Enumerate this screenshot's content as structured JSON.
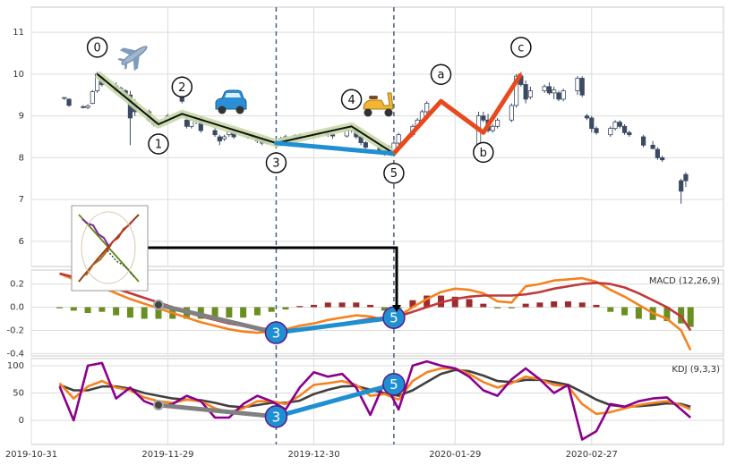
{
  "chart_data": [
    {
      "type": "candlestick",
      "x": [
        "2019-11-07",
        "2019-11-08",
        "2019-11-11",
        "2019-11-12",
        "2019-11-13",
        "2019-11-14",
        "2019-11-15",
        "2019-11-18",
        "2019-11-19",
        "2019-11-20",
        "2019-11-21",
        "2019-11-22",
        "2019-11-25",
        "2019-11-26",
        "2019-11-27",
        "2019-11-29",
        "2019-12-02",
        "2019-12-03",
        "2019-12-04",
        "2019-12-05",
        "2019-12-06",
        "2019-12-09",
        "2019-12-10",
        "2019-12-11",
        "2019-12-12",
        "2019-12-13",
        "2019-12-16",
        "2019-12-17",
        "2019-12-18",
        "2019-12-19",
        "2019-12-20",
        "2019-12-23",
        "2019-12-24",
        "2019-12-26",
        "2019-12-27",
        "2019-12-30",
        "2019-12-31",
        "2020-01-02",
        "2020-01-03",
        "2020-01-06",
        "2020-01-07",
        "2020-01-08",
        "2020-01-09",
        "2020-01-10",
        "2020-01-13",
        "2020-01-14",
        "2020-01-15",
        "2020-01-16",
        "2020-01-17",
        "2020-01-20",
        "2020-01-21",
        "2020-01-22",
        "2020-01-23",
        "2020-02-03",
        "2020-02-04",
        "2020-02-05",
        "2020-02-06",
        "2020-02-07",
        "2020-02-10",
        "2020-02-11",
        "2020-02-12",
        "2020-02-13",
        "2020-02-14",
        "2020-02-17",
        "2020-02-18",
        "2020-02-19",
        "2020-02-20",
        "2020-02-21",
        "2020-02-24",
        "2020-02-25",
        "2020-02-26",
        "2020-02-27",
        "2020-02-28",
        "2020-03-02",
        "2020-03-03",
        "2020-03-04",
        "2020-03-05",
        "2020-03-06",
        "2020-03-09",
        "2020-03-11",
        "2020-03-12",
        "2020-03-13",
        "2020-03-17",
        "2020-03-18"
      ],
      "open": [
        9.42,
        9.4,
        9.22,
        9.2,
        9.3,
        9.6,
        9.95,
        9.72,
        9.58,
        9.6,
        9.5,
        9.3,
        9.1,
        8.88,
        8.8,
        8.9,
        9.9,
        8.9,
        8.75,
        8.9,
        8.95,
        8.65,
        8.5,
        8.45,
        8.55,
        8.6,
        8.5,
        8.55,
        8.48,
        8.4,
        8.35,
        8.42,
        8.46,
        8.5,
        8.53,
        8.5,
        8.56,
        8.58,
        8.55,
        8.52,
        8.66,
        8.72,
        8.5,
        8.36,
        8.25,
        8.15,
        8.12,
        8.1,
        8.35,
        8.55,
        8.75,
        8.9,
        9.1,
        8.3,
        9.0,
        8.9,
        8.65,
        8.75,
        8.9,
        9.25,
        9.95,
        9.75,
        9.45,
        9.6,
        9.7,
        9.55,
        9.55,
        9.4,
        9.6,
        9.9,
        9.0,
        8.95,
        8.7,
        8.55,
        8.7,
        8.85,
        8.75,
        8.6,
        8.5,
        8.3,
        8.2,
        8.0,
        7.45,
        7.6
      ],
      "high": [
        9.45,
        9.42,
        9.26,
        9.28,
        9.62,
        10.05,
        9.98,
        9.8,
        9.7,
        9.64,
        9.6,
        9.4,
        9.15,
        8.95,
        8.9,
        9.05,
        9.95,
        9.0,
        8.95,
        9.0,
        9.0,
        8.7,
        8.55,
        8.55,
        8.65,
        8.65,
        8.6,
        8.6,
        8.52,
        8.45,
        8.45,
        8.5,
        8.55,
        8.56,
        8.58,
        8.6,
        8.62,
        8.65,
        8.6,
        8.7,
        8.78,
        8.74,
        8.55,
        8.4,
        8.3,
        8.2,
        8.3,
        8.4,
        8.6,
        8.8,
        8.95,
        9.15,
        9.35,
        9.1,
        9.1,
        9.05,
        8.8,
        8.95,
        9.3,
        10.0,
        10.05,
        9.85,
        9.7,
        9.75,
        9.8,
        9.7,
        9.6,
        9.65,
        9.95,
        9.95,
        9.05,
        9.0,
        8.75,
        8.75,
        8.9,
        8.9,
        8.8,
        8.65,
        8.55,
        8.4,
        8.25,
        8.05,
        7.5,
        7.65
      ],
      "low": [
        9.38,
        9.22,
        9.18,
        9.16,
        9.28,
        9.55,
        9.7,
        9.55,
        9.5,
        9.42,
        8.3,
        9.0,
        8.85,
        8.75,
        8.78,
        8.85,
        9.3,
        8.7,
        8.7,
        8.8,
        8.6,
        8.5,
        8.3,
        8.4,
        8.5,
        8.45,
        8.45,
        8.45,
        8.35,
        8.3,
        8.32,
        8.38,
        8.4,
        8.45,
        8.45,
        8.48,
        8.5,
        8.5,
        8.45,
        8.48,
        8.6,
        8.45,
        8.3,
        8.2,
        8.1,
        8.05,
        8.08,
        8.05,
        8.3,
        8.5,
        8.7,
        8.85,
        9.05,
        8.2,
        8.85,
        8.6,
        8.6,
        8.7,
        8.85,
        9.2,
        9.7,
        9.3,
        9.4,
        9.55,
        9.5,
        9.4,
        9.35,
        9.35,
        9.5,
        9.45,
        8.9,
        8.6,
        8.55,
        8.5,
        8.65,
        8.7,
        8.55,
        8.5,
        8.25,
        8.2,
        7.95,
        7.9,
        6.9,
        7.3
      ],
      "close": [
        9.44,
        9.25,
        9.2,
        9.24,
        9.58,
        10.0,
        9.75,
        9.6,
        9.66,
        9.46,
        8.95,
        9.1,
        8.9,
        8.8,
        8.86,
        9.0,
        9.35,
        8.75,
        8.9,
        8.95,
        8.65,
        8.55,
        8.4,
        8.5,
        8.62,
        8.5,
        8.56,
        8.48,
        8.4,
        8.35,
        8.42,
        8.46,
        8.5,
        8.53,
        8.5,
        8.56,
        8.58,
        8.55,
        8.52,
        8.66,
        8.72,
        8.5,
        8.36,
        8.25,
        8.15,
        8.1,
        8.25,
        8.35,
        8.55,
        8.75,
        8.9,
        9.1,
        9.3,
        9.0,
        8.9,
        8.65,
        8.75,
        8.9,
        9.25,
        9.95,
        9.75,
        9.4,
        9.6,
        9.7,
        9.55,
        9.62,
        9.4,
        9.6,
        9.9,
        9.5,
        8.95,
        8.7,
        8.6,
        8.7,
        8.85,
        8.75,
        8.6,
        8.55,
        8.3,
        8.22,
        8.0,
        7.95,
        7.2,
        7.45
      ],
      "up_color": "#ffffff",
      "down_color": "#3b4a63",
      "ylim": [
        5.4,
        11.6
      ],
      "yticks": [
        6,
        7,
        8,
        9,
        10,
        11
      ],
      "grid": true,
      "waves": {
        "impulse": {
          "color": "#111111",
          "band_color": "#c9d9a9",
          "points": [
            {
              "label": "0",
              "x": "2019-11-14",
              "y": 10.0
            },
            {
              "label": "1",
              "x": "2019-11-27",
              "y": 8.8
            },
            {
              "label": "2",
              "x": "2019-12-02",
              "y": 9.05
            },
            {
              "label": "3",
              "x": "2019-12-22",
              "y": 8.35
            },
            {
              "label": "4",
              "x": "2020-01-07",
              "y": 8.75
            },
            {
              "label": "5",
              "x": "2020-01-16",
              "y": 8.1
            }
          ]
        },
        "correction": {
          "color": "#e8491d",
          "points": [
            {
              "label": "a",
              "x": "2020-01-26",
              "y": 9.35
            },
            {
              "label": "b",
              "x": "2020-02-04",
              "y": 8.6
            },
            {
              "label": "c",
              "x": "2020-02-12",
              "y": 10.0
            }
          ]
        },
        "link_color": "#1f8fd1",
        "lead_color": "#808080",
        "dash_color": "#4a6080"
      }
    },
    {
      "type": "line",
      "title": "MACD (12,26,9)",
      "ylim": [
        -0.42,
        0.32
      ],
      "yticks": [
        0.2,
        {
          "value": 0,
          "label": "0.0"
        },
        -0.2,
        -0.4
      ],
      "grid": true,
      "series": [
        {
          "kind": "bar",
          "color_up": "#9e2a2b",
          "color_down": "#6b8e23",
          "values": [
            -0.01,
            -0.03,
            -0.05,
            -0.04,
            -0.07,
            -0.09,
            -0.1,
            -0.1,
            -0.1,
            -0.1,
            -0.1,
            -0.1,
            -0.09,
            -0.09,
            -0.07,
            -0.04,
            -0.02,
            0.01,
            0.02,
            0.04,
            0.04,
            0.04,
            0.02,
            -0.03,
            -0.01,
            0.06,
            0.1,
            0.1,
            0.09,
            0.07,
            0.03,
            -0.01,
            -0.01,
            0.03,
            0.04,
            0.05,
            0.05,
            0.04,
            0.02,
            -0.04,
            -0.07,
            -0.1,
            -0.11,
            -0.12,
            -0.14,
            -0.17
          ]
        },
        {
          "kind": "line",
          "color": "#f5821f",
          "values": [
            0.29,
            0.24,
            0.19,
            0.17,
            0.12,
            0.07,
            0.03,
            -0.01,
            -0.05,
            -0.09,
            -0.13,
            -0.16,
            -0.19,
            -0.21,
            -0.22,
            -0.21,
            -0.19,
            -0.16,
            -0.14,
            -0.11,
            -0.09,
            -0.07,
            -0.08,
            -0.11,
            -0.08,
            0.0,
            0.07,
            0.13,
            0.16,
            0.15,
            0.12,
            0.05,
            0.04,
            0.18,
            0.2,
            0.23,
            0.24,
            0.25,
            0.22,
            0.15,
            0.09,
            0.02,
            -0.05,
            -0.1,
            -0.2,
            -0.37
          ]
        },
        {
          "kind": "line",
          "color": "#c0393b",
          "values": [
            0.29,
            0.26,
            0.22,
            0.19,
            0.16,
            0.12,
            0.08,
            0.04,
            0.0,
            -0.04,
            -0.08,
            -0.11,
            -0.14,
            -0.16,
            -0.18,
            -0.19,
            -0.2,
            -0.19,
            -0.18,
            -0.16,
            -0.14,
            -0.12,
            -0.1,
            -0.09,
            -0.08,
            -0.04,
            0.0,
            0.04,
            0.07,
            0.09,
            0.1,
            0.1,
            0.1,
            0.11,
            0.13,
            0.16,
            0.18,
            0.2,
            0.21,
            0.2,
            0.17,
            0.12,
            0.06,
            0.0,
            -0.08,
            -0.2
          ]
        }
      ],
      "wave_points": [
        {
          "x": "2019-11-27",
          "value": 0.02
        },
        {
          "label": "3",
          "x": "2019-12-22",
          "value": -0.22
        },
        {
          "label": "5",
          "x": "2020-01-16",
          "value": -0.09
        }
      ]
    },
    {
      "type": "line",
      "title": "KDJ (9,3,3)",
      "x": [
        "2019-11-06",
        "2019-11-09",
        "2019-11-12",
        "2019-11-15",
        "2019-11-18",
        "2019-11-21",
        "2019-11-24",
        "2019-11-27",
        "2019-11-30",
        "2019-12-03",
        "2019-12-06",
        "2019-12-09",
        "2019-12-12",
        "2019-12-15",
        "2019-12-18",
        "2019-12-21",
        "2019-12-24",
        "2019-12-27",
        "2019-12-30",
        "2020-01-02",
        "2020-01-05",
        "2020-01-08",
        "2020-01-11",
        "2020-01-14",
        "2020-01-17",
        "2020-01-20",
        "2020-01-23",
        "2020-01-26",
        "2020-01-29",
        "2020-02-01",
        "2020-02-04",
        "2020-02-07",
        "2020-02-10",
        "2020-02-13",
        "2020-02-16",
        "2020-02-19",
        "2020-02-22",
        "2020-02-25",
        "2020-02-28",
        "2020-03-02",
        "2020-03-05",
        "2020-03-08",
        "2020-03-11",
        "2020-03-14",
        "2020-03-17",
        "2020-03-19"
      ],
      "xlim": [
        "2019-10-31",
        "2020-03-26"
      ],
      "xticks": [
        "2019-10-31",
        "2019-11-29",
        "2019-12-30",
        "2020-01-29",
        "2020-02-27"
      ],
      "ylim": [
        -44,
        113
      ],
      "yticks": [
        0,
        50,
        100
      ],
      "grid": true,
      "series": [
        {
          "color": "#404040",
          "values": [
            65,
            55,
            55,
            62,
            62,
            58,
            50,
            45,
            40,
            38,
            37,
            32,
            26,
            24,
            28,
            32,
            32,
            36,
            48,
            56,
            62,
            63,
            56,
            50,
            45,
            55,
            70,
            85,
            92,
            90,
            82,
            72,
            70,
            74,
            74,
            70,
            65,
            52,
            38,
            28,
            25,
            26,
            28,
            31,
            30,
            25
          ]
        },
        {
          "color": "#f5821f",
          "values": [
            68,
            40,
            62,
            72,
            60,
            55,
            42,
            35,
            32,
            38,
            35,
            22,
            15,
            22,
            35,
            35,
            30,
            45,
            65,
            68,
            72,
            65,
            45,
            48,
            38,
            72,
            88,
            95,
            95,
            85,
            70,
            60,
            68,
            80,
            75,
            65,
            62,
            30,
            12,
            15,
            22,
            28,
            32,
            35,
            28,
            20
          ]
        },
        {
          "color": "#8b008b",
          "values": [
            62,
            0,
            100,
            105,
            40,
            60,
            35,
            25,
            30,
            45,
            35,
            5,
            5,
            30,
            45,
            35,
            20,
            60,
            88,
            80,
            85,
            60,
            10,
            70,
            20,
            100,
            108,
            100,
            95,
            80,
            55,
            45,
            75,
            95,
            75,
            50,
            65,
            -35,
            -20,
            30,
            25,
            35,
            40,
            42,
            20,
            5
          ]
        }
      ],
      "wave_points": [
        {
          "x": "2019-11-27",
          "value": 28
        },
        {
          "label": "3",
          "x": "2019-12-22",
          "value": 7
        },
        {
          "label": "5",
          "x": "2020-01-16",
          "value": 66
        }
      ]
    }
  ]
}
